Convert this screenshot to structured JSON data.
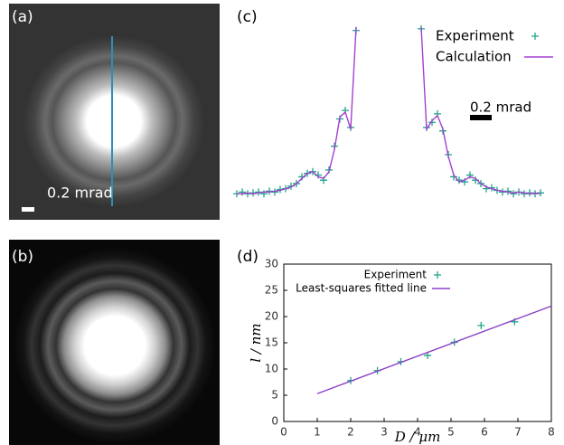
{
  "images": [
    {
      "label": "(a)",
      "scale_bar": "0.2 mrad"
    },
    {
      "label": "(b)"
    }
  ],
  "chart_data": [
    {
      "type": "line",
      "label": "(c)",
      "scale_bar": "0.2 mrad",
      "x": [
        -1.4,
        -1.35,
        -1.3,
        -1.25,
        -1.2,
        -1.15,
        -1.1,
        -1.05,
        -1.0,
        -0.95,
        -0.9,
        -0.85,
        -0.8,
        -0.75,
        -0.7,
        -0.65,
        -0.6,
        -0.55,
        -0.5,
        -0.45,
        -0.4,
        -0.35,
        -0.3,
        -0.25,
        -0.2,
        -0.15,
        -0.1,
        -0.05,
        0,
        0.05,
        0.1,
        0.15,
        0.2,
        0.25,
        0.3,
        0.35,
        0.4,
        0.45,
        0.5,
        0.55,
        0.6,
        0.65,
        0.7,
        0.75,
        0.8,
        0.85,
        0.9,
        0.95,
        1.0,
        1.05,
        1.1,
        1.15,
        1.2,
        1.25,
        1.3,
        1.35,
        1.4
      ],
      "xlim": [
        -1.4,
        1.4
      ],
      "ylim": [
        0,
        1
      ],
      "series": [
        {
          "name": "Experiment",
          "color": "#1fa58a",
          "mode": "markers",
          "values": [
            0.02,
            0.03,
            0.02,
            0.025,
            0.03,
            0.02,
            0.035,
            0.03,
            0.045,
            0.05,
            0.065,
            0.08,
            0.12,
            0.14,
            0.15,
            0.13,
            0.1,
            0.16,
            0.3,
            0.46,
            0.51,
            0.41,
            0.98,
            null,
            null,
            null,
            null,
            null,
            null,
            null,
            null,
            null,
            null,
            null,
            0.99,
            0.41,
            0.44,
            0.49,
            0.39,
            0.25,
            0.12,
            0.1,
            0.09,
            0.13,
            0.1,
            0.08,
            0.05,
            0.055,
            0.04,
            0.03,
            0.035,
            0.02,
            0.03,
            0.02,
            0.025,
            0.02,
            0.025
          ]
        },
        {
          "name": "Calculation",
          "color": "#a43fd0",
          "mode": "line",
          "values": [
            0.02,
            0.02,
            0.025,
            0.02,
            0.025,
            0.03,
            0.03,
            0.035,
            0.04,
            0.05,
            0.06,
            0.08,
            0.11,
            0.14,
            0.15,
            0.12,
            0.11,
            0.15,
            0.28,
            0.47,
            0.5,
            0.4,
            1.0,
            null,
            null,
            null,
            null,
            null,
            null,
            null,
            null,
            null,
            null,
            null,
            1.0,
            0.4,
            0.45,
            0.48,
            0.4,
            0.24,
            0.13,
            0.09,
            0.1,
            0.12,
            0.11,
            0.08,
            0.06,
            0.05,
            0.04,
            0.035,
            0.03,
            0.025,
            0.03,
            0.025,
            0.02,
            0.025,
            0.02
          ]
        }
      ]
    },
    {
      "type": "scatter",
      "label": "(d)",
      "x_label": "D / μm",
      "y_label": "l / nm",
      "xlim": [
        0,
        8
      ],
      "ylim": [
        0,
        30
      ],
      "xticks": [
        0,
        1,
        2,
        3,
        4,
        5,
        6,
        7,
        8
      ],
      "yticks": [
        0,
        5,
        10,
        15,
        20,
        25,
        30
      ],
      "series": [
        {
          "name": "Experiment",
          "color": "#1fa58a",
          "mode": "markers",
          "x": [
            2,
            2.8,
            3.5,
            4.3,
            5.1,
            5.9,
            6.9
          ],
          "values": [
            7.8,
            9.7,
            11.4,
            12.6,
            15.1,
            18.3,
            19.0
          ]
        },
        {
          "name": "Least-squares fitted line",
          "color": "#8a3fc8",
          "mode": "line",
          "x": [
            1,
            8
          ],
          "values": [
            5.3,
            22.0
          ]
        }
      ]
    }
  ]
}
